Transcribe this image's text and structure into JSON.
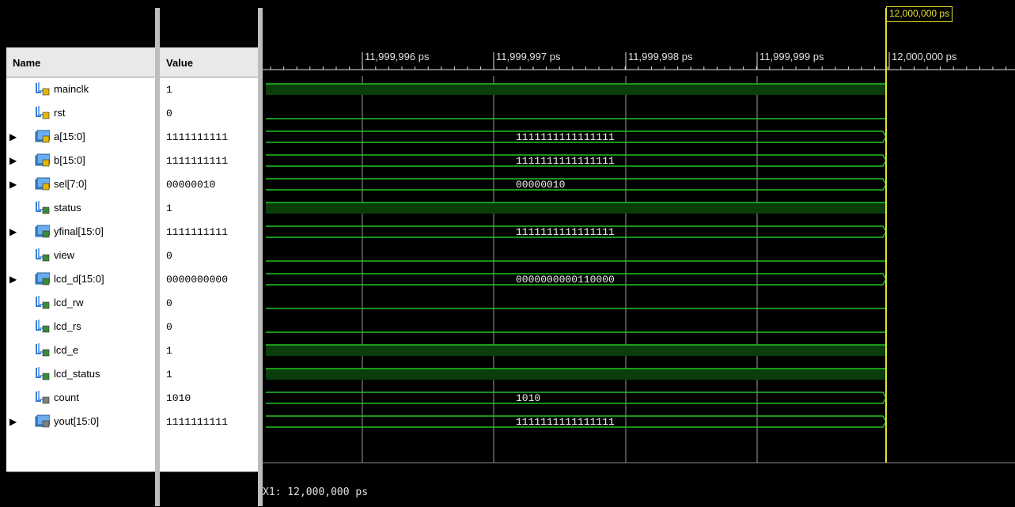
{
  "columns": {
    "name_header": "Name",
    "value_header": "Value"
  },
  "signals": [
    {
      "name": "mainclk",
      "value": "1",
      "kind": "bit-input",
      "expandable": false,
      "wave": "high",
      "bus_label": ""
    },
    {
      "name": "rst",
      "value": "0",
      "kind": "bit-input",
      "expandable": false,
      "wave": "low",
      "bus_label": ""
    },
    {
      "name": "a[15:0]",
      "value": "1111111111",
      "kind": "bus-input",
      "expandable": true,
      "wave": "bus",
      "bus_label": "1111111111111111"
    },
    {
      "name": "b[15:0]",
      "value": "1111111111",
      "kind": "bus-input",
      "expandable": true,
      "wave": "bus",
      "bus_label": "1111111111111111"
    },
    {
      "name": "sel[7:0]",
      "value": "00000010",
      "kind": "bus-input",
      "expandable": true,
      "wave": "bus",
      "bus_label": "00000010"
    },
    {
      "name": "status",
      "value": "1",
      "kind": "bit-output",
      "expandable": false,
      "wave": "high",
      "bus_label": ""
    },
    {
      "name": "yfinal[15:0]",
      "value": "1111111111",
      "kind": "bus-output",
      "expandable": true,
      "wave": "bus",
      "bus_label": "1111111111111111"
    },
    {
      "name": "view",
      "value": "0",
      "kind": "bit-output",
      "expandable": false,
      "wave": "low",
      "bus_label": ""
    },
    {
      "name": "lcd_d[15:0]",
      "value": "0000000000",
      "kind": "bus-output",
      "expandable": true,
      "wave": "bus",
      "bus_label": "0000000000110000"
    },
    {
      "name": "lcd_rw",
      "value": "0",
      "kind": "bit-output",
      "expandable": false,
      "wave": "low",
      "bus_label": ""
    },
    {
      "name": "lcd_rs",
      "value": "0",
      "kind": "bit-output",
      "expandable": false,
      "wave": "low",
      "bus_label": ""
    },
    {
      "name": "lcd_e",
      "value": "1",
      "kind": "bit-output",
      "expandable": false,
      "wave": "high",
      "bus_label": ""
    },
    {
      "name": "lcd_status",
      "value": "1",
      "kind": "bit-output",
      "expandable": false,
      "wave": "high",
      "bus_label": ""
    },
    {
      "name": "count",
      "value": "1010",
      "kind": "bit-internal",
      "expandable": false,
      "wave": "bus",
      "bus_label": "1010"
    },
    {
      "name": "yout[15:0]",
      "value": "1111111111",
      "kind": "bus-internal",
      "expandable": true,
      "wave": "bus",
      "bus_label": "1111111111111111"
    }
  ],
  "timeline": {
    "ticks": [
      "11,999,996 ps",
      "11,999,997 ps",
      "11,999,998 ps",
      "11,999,999 ps",
      "12,000,000 ps"
    ],
    "cursor_label": "12,000,000 ps",
    "x1_readout": "X1: 12,000,000 ps"
  },
  "colors": {
    "wave": "#22c322",
    "high_fill": "#0b3d0b",
    "cursor": "#e6e02a",
    "grid": "#9a9a9a",
    "ruler_text": "#e0e0e0"
  },
  "icons": {
    "bit-input": "bit-input-signal-icon",
    "bus-input": "bus-input-signal-icon",
    "bit-output": "bit-output-signal-icon",
    "bus-output": "bus-output-signal-icon",
    "bit-internal": "bit-internal-signal-icon",
    "bus-internal": "bus-internal-signal-icon"
  }
}
